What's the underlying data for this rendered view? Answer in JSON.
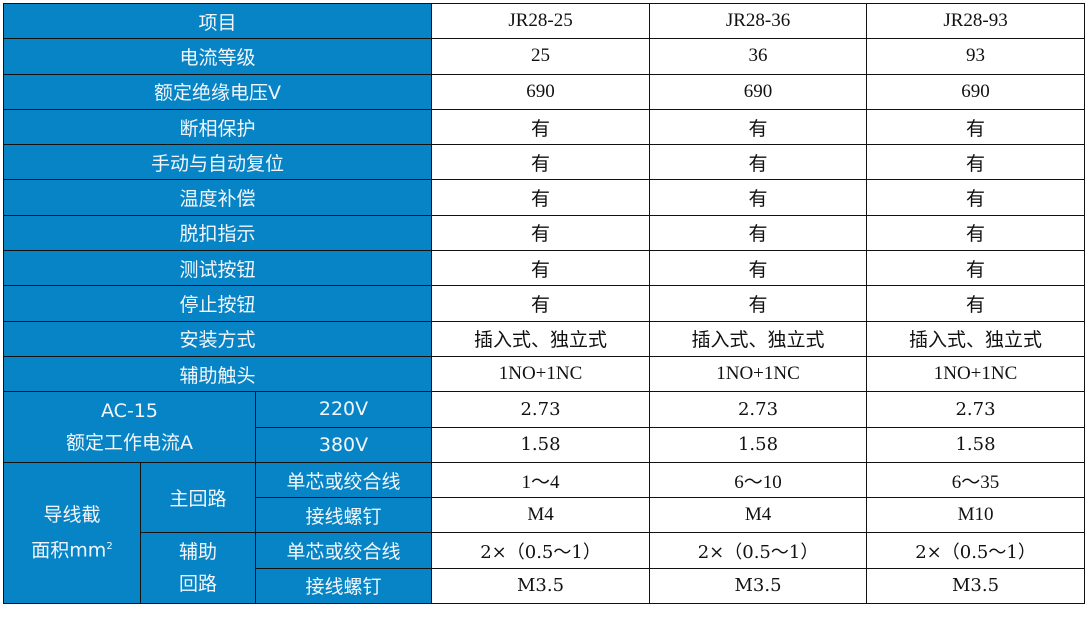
{
  "header": {
    "label": "项目",
    "models": [
      "JR28-25",
      "JR28-36",
      "JR28-93"
    ]
  },
  "rows": [
    {
      "label": "电流等级",
      "values": [
        "25",
        "36",
        "93"
      ]
    },
    {
      "label": "额定绝缘电压V",
      "values": [
        "690",
        "690",
        "690"
      ]
    },
    {
      "label": "断相保护",
      "values": [
        "有",
        "有",
        "有"
      ]
    },
    {
      "label": "手动与自动复位",
      "values": [
        "有",
        "有",
        "有"
      ]
    },
    {
      "label": "温度补偿",
      "values": [
        "有",
        "有",
        "有"
      ]
    },
    {
      "label": "脱扣指示",
      "values": [
        "有",
        "有",
        "有"
      ]
    },
    {
      "label": "测试按钮",
      "values": [
        "有",
        "有",
        "有"
      ]
    },
    {
      "label": "停止按钮",
      "values": [
        "有",
        "有",
        "有"
      ]
    },
    {
      "label": "安装方式",
      "values": [
        "插入式、独立式",
        "插入式、独立式",
        "插入式、独立式"
      ]
    },
    {
      "label": "辅助触头",
      "values": [
        "1NO+1NC",
        "1NO+1NC",
        "1NO+1NC"
      ]
    }
  ],
  "ac15": {
    "label_line1": "AC-15",
    "label_line2": "额定工作电流A",
    "rows": [
      {
        "label": "220V",
        "values": [
          "2.73",
          "2.73",
          "2.73"
        ]
      },
      {
        "label": "380V",
        "values": [
          "1.58",
          "1.58",
          "1.58"
        ]
      }
    ]
  },
  "wire": {
    "label_line1": "导线截",
    "label_line2": "面积mm",
    "label_sup": "2",
    "main": {
      "label": "主回路",
      "rows": [
        {
          "label": "单芯或绞合线",
          "values": [
            "1～4",
            "6～10",
            "6～35"
          ]
        },
        {
          "label": "接线螺钉",
          "values": [
            "M4",
            "M4",
            "M10"
          ]
        }
      ]
    },
    "aux": {
      "label_line1": "辅助",
      "label_line2": "回路",
      "rows": [
        {
          "label": "单芯或绞合线",
          "values": [
            "2×（0.5～1）",
            "2×（0.5～1）",
            "2×（0.5～1）"
          ]
        },
        {
          "label": "接线螺钉",
          "values": [
            "M3.5",
            "M3.5",
            "M3.5"
          ]
        }
      ]
    }
  },
  "colors": {
    "header_bg": "#0784c6",
    "header_text": "#f2f6fa"
  }
}
